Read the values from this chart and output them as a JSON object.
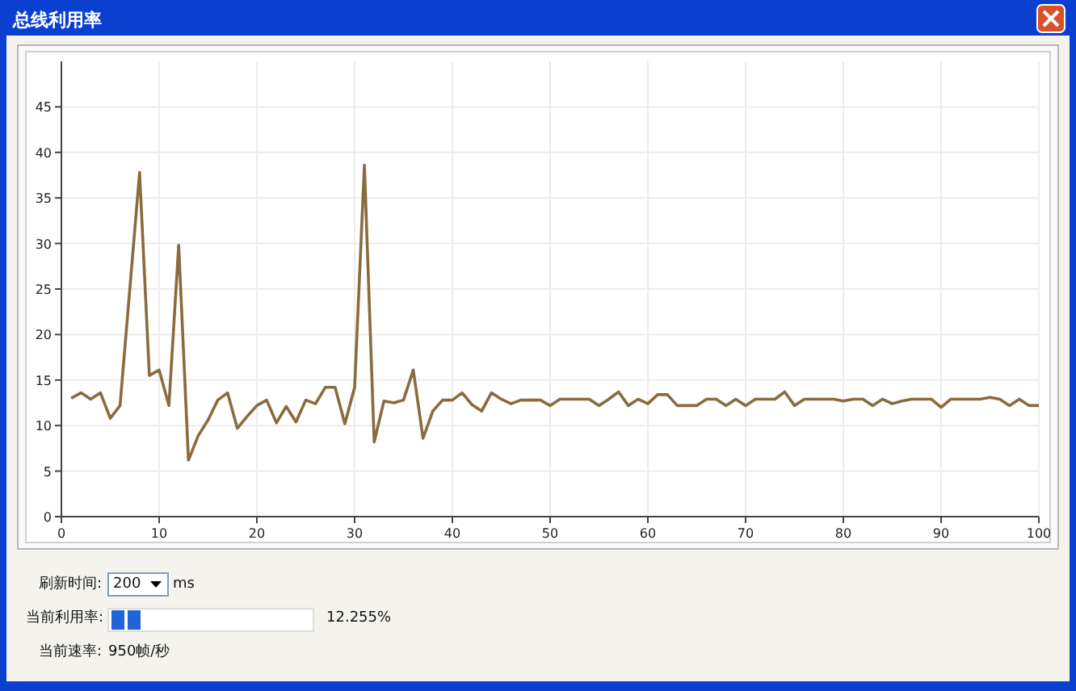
{
  "chart_data": {
    "type": "line",
    "title": "总线利用率",
    "x": [
      1,
      2,
      3,
      4,
      5,
      6,
      7,
      8,
      9,
      10,
      11,
      12,
      13,
      14,
      15,
      16,
      17,
      18,
      19,
      20,
      21,
      22,
      23,
      24,
      25,
      26,
      27,
      28,
      29,
      30,
      31,
      32,
      33,
      34,
      35,
      36,
      37,
      38,
      39,
      40,
      41,
      42,
      43,
      44,
      45,
      46,
      47,
      48,
      49,
      50,
      51,
      52,
      53,
      54,
      55,
      56,
      57,
      58,
      59,
      60,
      61,
      62,
      63,
      64,
      65,
      66,
      67,
      68,
      69,
      70,
      71,
      72,
      73,
      74,
      75,
      76,
      77,
      78,
      79,
      80,
      81,
      82,
      83,
      84,
      85,
      86,
      87,
      88,
      89,
      90,
      91,
      92,
      93,
      94,
      95,
      96,
      97,
      98,
      99,
      100
    ],
    "series": [
      {
        "color": "#8b6a3e",
        "values": [
          13,
          13.6,
          12.9,
          13.6,
          10.8,
          12.2,
          25,
          37.8,
          15.5,
          16.1,
          12.2,
          29.8,
          6.2,
          8.9,
          10.6,
          12.8,
          13.6,
          9.7,
          11,
          12.2,
          12.8,
          10.3,
          12.1,
          10.4,
          12.8,
          12.4,
          14.2,
          14.2,
          10.2,
          14.2,
          38.6,
          8.2,
          12.7,
          12.5,
          12.8,
          16.1,
          8.6,
          11.6,
          12.8,
          12.8,
          13.6,
          12.3,
          11.6,
          13.6,
          12.9,
          12.4,
          12.8,
          12.8,
          12.8,
          12.2,
          12.9,
          12.9,
          12.9,
          12.9,
          12.2,
          12.9,
          13.7,
          12.2,
          12.9,
          12.4,
          13.4,
          13.4,
          12.2,
          12.2,
          12.2,
          12.9,
          12.9,
          12.2,
          12.9,
          12.2,
          12.9,
          12.9,
          12.9,
          13.7,
          12.2,
          12.9,
          12.9,
          12.9,
          12.9,
          12.7,
          12.9,
          12.9,
          12.2,
          12.9,
          12.4,
          12.7,
          12.9,
          12.9,
          12.9,
          12,
          12.9,
          12.9,
          12.9,
          12.9,
          13.1,
          12.9,
          12.2,
          12.9,
          12.2,
          12.2
        ]
      }
    ],
    "xlim": [
      0,
      100
    ],
    "ylim": [
      0,
      50
    ],
    "xticks": [
      0,
      10,
      20,
      30,
      40,
      50,
      60,
      70,
      80,
      90,
      100
    ],
    "yticks": [
      0,
      5,
      10,
      15,
      20,
      25,
      30,
      35,
      40,
      45
    ],
    "grid": true,
    "annotations": [
      "刷新时间:",
      "200",
      "ms",
      "当前利用率:",
      "12.255%",
      "当前速率:",
      "950帧/秒"
    ]
  }
}
